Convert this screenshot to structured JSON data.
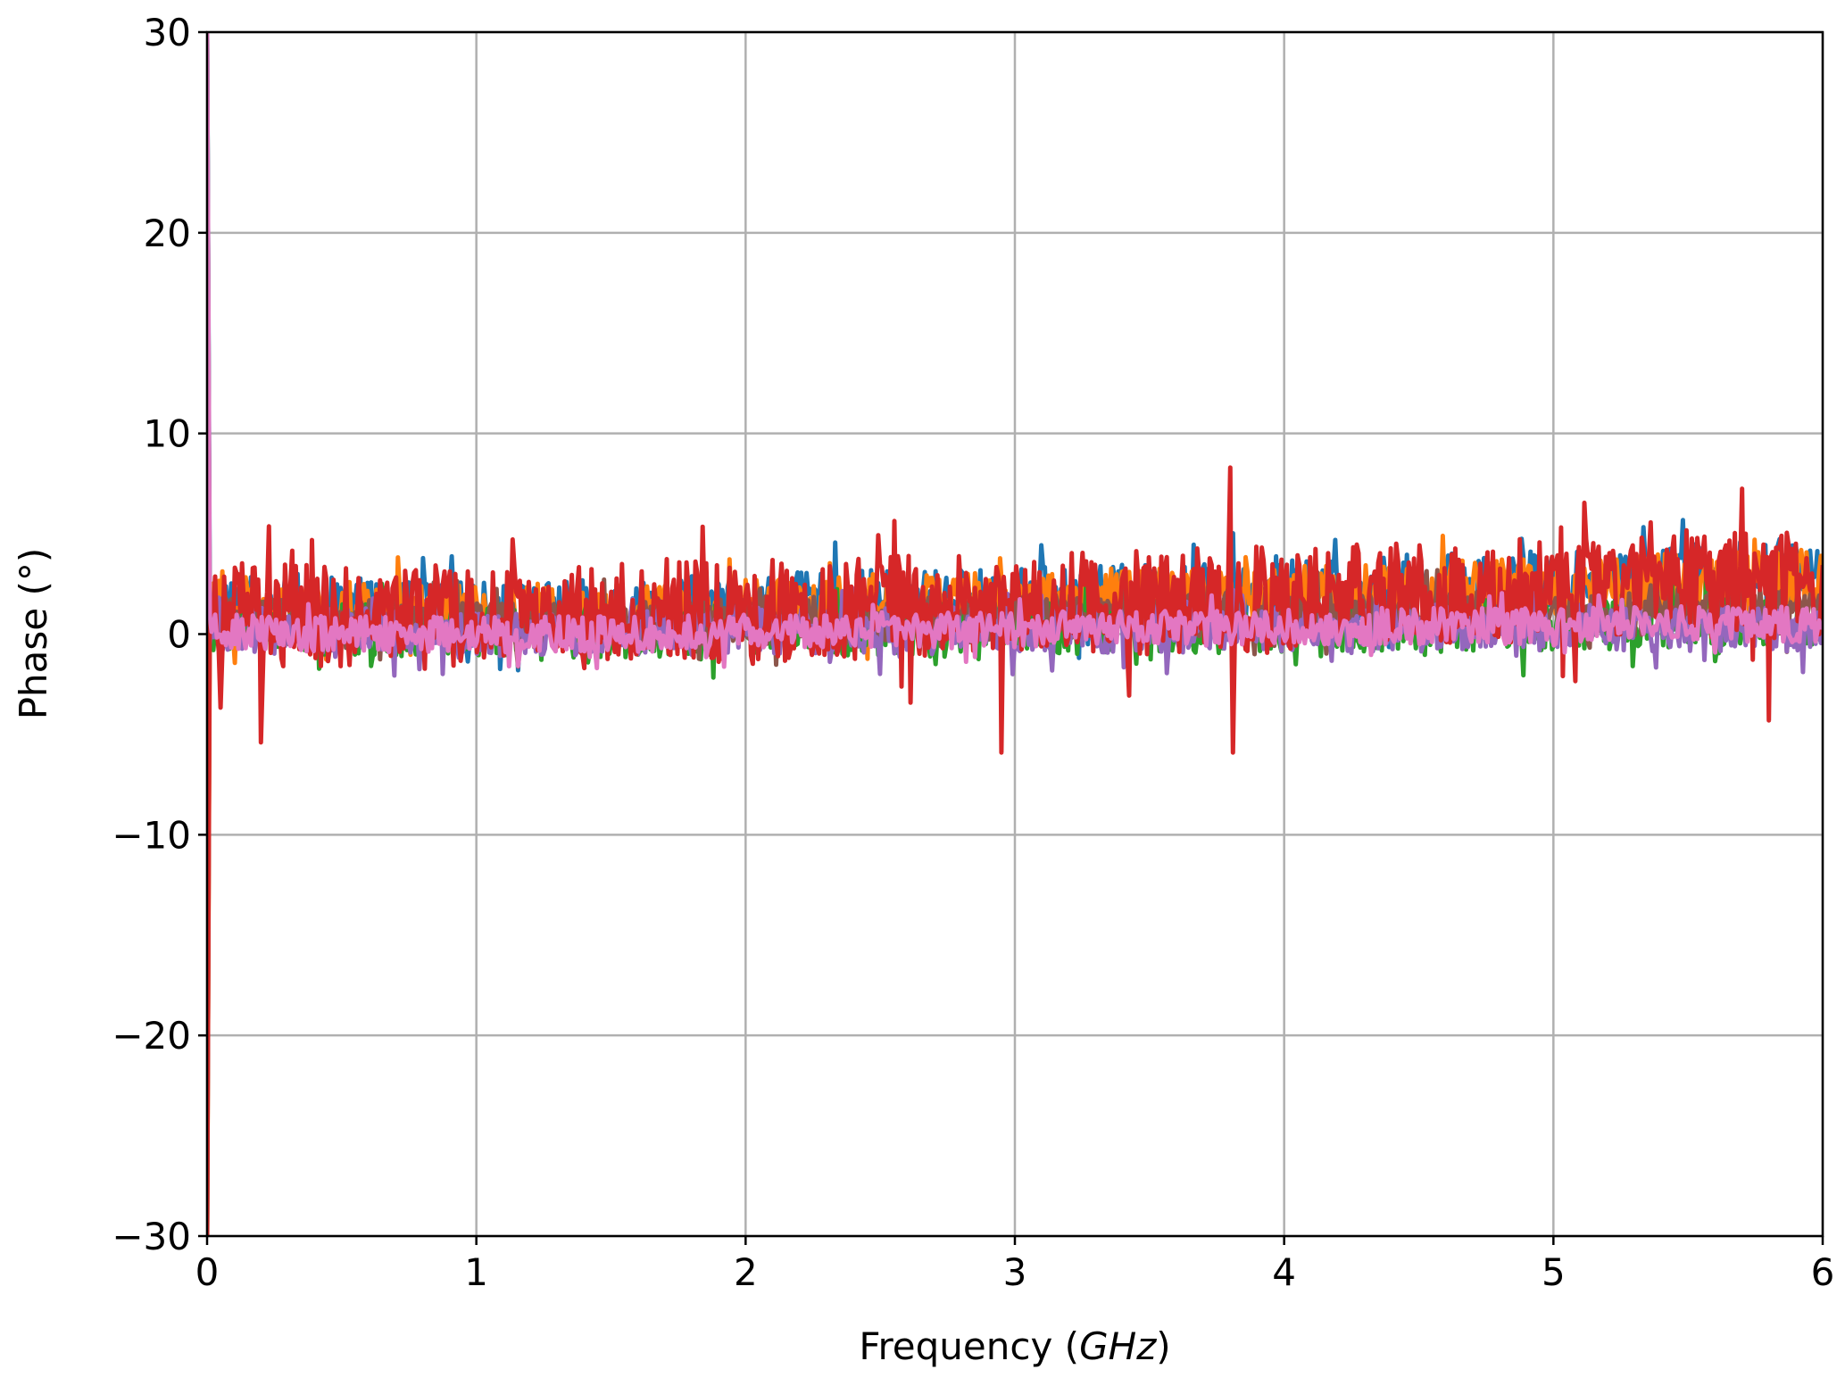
{
  "chart_data": {
    "type": "line",
    "title": "",
    "xlabel": "Frequency (",
    "xlabel_unit": "GHz",
    "xlabel_close": ")",
    "ylabel": "Phase (°)",
    "xlim": [
      0,
      6
    ],
    "ylim": [
      -30,
      30
    ],
    "xticks": [
      0,
      1,
      2,
      3,
      4,
      5,
      6
    ],
    "xtick_labels": [
      "0",
      "1",
      "2",
      "3",
      "4",
      "5",
      "6"
    ],
    "yticks": [
      -30,
      -20,
      -10,
      0,
      10,
      20,
      30
    ],
    "ytick_labels": [
      "−30",
      "−20",
      "−10",
      "0",
      "10",
      "20",
      "30"
    ],
    "grid": true,
    "legend": "none",
    "series": [
      {
        "color": "#1f77b4",
        "center": [
          0.2,
          0.5,
          1.0,
          1.5,
          2.0,
          2.5,
          3.0,
          3.5,
          4.0,
          4.5,
          5.0,
          5.5,
          6.0
        ],
        "center_values": [
          1.3,
          1.2,
          1.0,
          1.1,
          1.4,
          1.6,
          1.7,
          1.9,
          2.1,
          2.4,
          2.6,
          2.9,
          3.0
        ],
        "spread": 1.6
      },
      {
        "color": "#ff7f0e",
        "center": [
          0.2,
          0.5,
          1.0,
          1.5,
          2.0,
          2.5,
          3.0,
          3.5,
          4.0,
          4.5,
          5.0,
          5.5,
          6.0
        ],
        "center_values": [
          1.2,
          1.1,
          1.0,
          1.1,
          1.3,
          1.5,
          1.7,
          1.8,
          2.0,
          2.2,
          2.4,
          2.6,
          2.8
        ],
        "spread": 1.5
      },
      {
        "color": "#2ca02c",
        "center": [
          0.2,
          0.5,
          1.0,
          1.5,
          2.0,
          2.5,
          3.0,
          3.5,
          4.0,
          4.5,
          5.0,
          5.5,
          6.0
        ],
        "center_values": [
          0.3,
          0.2,
          0.1,
          0.1,
          0.2,
          0.2,
          0.3,
          0.3,
          0.4,
          0.4,
          0.4,
          0.5,
          0.5
        ],
        "spread": 1.3
      },
      {
        "color": "#8c564b",
        "center": [
          0.2,
          0.5,
          1.0,
          1.5,
          2.0,
          2.5,
          3.0,
          3.5,
          4.0,
          4.5,
          5.0,
          5.5,
          6.0
        ],
        "center_values": [
          0.6,
          0.5,
          0.5,
          0.5,
          0.6,
          0.7,
          0.8,
          0.8,
          0.9,
          1.0,
          1.0,
          1.1,
          1.2
        ],
        "spread": 1.2
      },
      {
        "color": "#9467bd",
        "center": [
          0.2,
          0.5,
          1.0,
          1.5,
          2.0,
          2.5,
          3.0,
          3.5,
          4.0,
          4.5,
          5.0,
          5.5,
          6.0
        ],
        "center_values": [
          0.2,
          0.1,
          0.1,
          0.1,
          0.2,
          0.2,
          0.2,
          0.3,
          0.3,
          0.3,
          0.3,
          0.3,
          0.3
        ],
        "spread": 1.2
      },
      {
        "color": "#d62728",
        "center": [
          0.2,
          0.5,
          1.0,
          1.5,
          2.0,
          2.5,
          3.0,
          3.5,
          4.0,
          4.5,
          5.0,
          5.5,
          6.0
        ],
        "center_values": [
          1.0,
          0.9,
          0.8,
          0.9,
          1.1,
          1.3,
          1.4,
          1.6,
          1.8,
          2.0,
          2.2,
          2.4,
          2.6
        ],
        "spread": 2.6
      },
      {
        "color": "#e377c2",
        "center": [
          0.2,
          0.5,
          1.0,
          1.5,
          2.0,
          2.5,
          3.0,
          3.5,
          4.0,
          4.5,
          5.0,
          5.5,
          6.0
        ],
        "center_values": [
          0.1,
          0.0,
          0.0,
          0.0,
          0.1,
          0.2,
          0.2,
          0.3,
          0.3,
          0.4,
          0.4,
          0.5,
          0.5
        ],
        "spread": 0.9
      }
    ],
    "spike_at_zero": {
      "x": 0.005,
      "max": 30,
      "min": -30
    },
    "notable_peaks": [
      {
        "x": 3.8,
        "y": 8.3
      },
      {
        "x": 3.81,
        "y": -5.9
      },
      {
        "x": 2.95,
        "y": -5.9
      },
      {
        "x": 0.2,
        "y": -5.4
      },
      {
        "x": 5.8,
        "y": -4.3
      }
    ]
  }
}
